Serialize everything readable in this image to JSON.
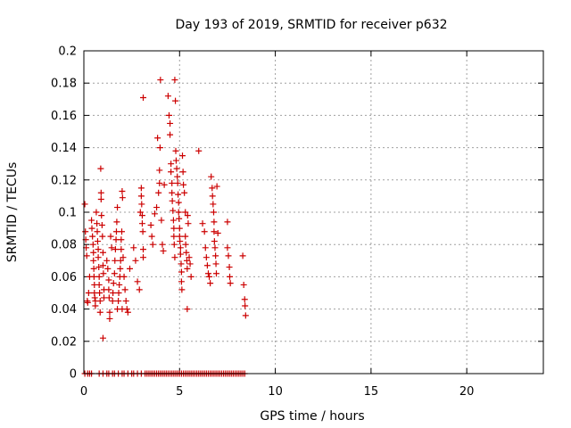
{
  "chart_data": {
    "type": "scatter",
    "title": "Day 193 of 2019, SRMTID for receiver p632",
    "xlabel": "GPS time / hours",
    "ylabel": "SRMTID / TECUs",
    "xlim": [
      0,
      24
    ],
    "ylim": [
      0,
      0.2
    ],
    "x_ticks": [
      0,
      5,
      10,
      15,
      20
    ],
    "x_tick_labels": [
      "0",
      "5",
      "10",
      "15",
      "20"
    ],
    "y_ticks": [
      0,
      0.02,
      0.04,
      0.06,
      0.08,
      0.1,
      0.12,
      0.14,
      0.16,
      0.18,
      0.2
    ],
    "y_tick_labels": [
      "0",
      "0.02",
      "0.04",
      "0.06",
      "0.08",
      "0.1",
      "0.12",
      "0.14",
      "0.16",
      "0.18",
      "0.2"
    ],
    "grid": true,
    "marker": "+",
    "series": [
      {
        "name": "SRMTID",
        "color": "#cc0000",
        "points": [
          [
            0.05,
            0.105
          ],
          [
            0.08,
            0.088
          ],
          [
            0.1,
            0.083
          ],
          [
            0.12,
            0.078
          ],
          [
            0.15,
            0.073
          ],
          [
            0.18,
            0.045
          ],
          [
            0.2,
            0.044
          ],
          [
            0.25,
            0.05
          ],
          [
            0.3,
            0.06
          ],
          [
            0.4,
            0.095
          ],
          [
            0.42,
            0.09
          ],
          [
            0.45,
            0.085
          ],
          [
            0.48,
            0.08
          ],
          [
            0.5,
            0.075
          ],
          [
            0.5,
            0.07
          ],
          [
            0.52,
            0.065
          ],
          [
            0.53,
            0.06
          ],
          [
            0.55,
            0.055
          ],
          [
            0.55,
            0.05
          ],
          [
            0.57,
            0.047
          ],
          [
            0.6,
            0.045
          ],
          [
            0.6,
            0.042
          ],
          [
            0.65,
            0.1
          ],
          [
            0.68,
            0.093
          ],
          [
            0.7,
            0.088
          ],
          [
            0.72,
            0.082
          ],
          [
            0.75,
            0.077
          ],
          [
            0.75,
            0.072
          ],
          [
            0.78,
            0.066
          ],
          [
            0.8,
            0.06
          ],
          [
            0.8,
            0.055
          ],
          [
            0.82,
            0.05
          ],
          [
            0.85,
            0.045
          ],
          [
            0.85,
            0.038
          ],
          [
            0.88,
            0.127
          ],
          [
            0.9,
            0.112
          ],
          [
            0.9,
            0.108
          ],
          [
            0.92,
            0.098
          ],
          [
            0.95,
            0.092
          ],
          [
            0.97,
            0.085
          ],
          [
            1.0,
            0.075
          ],
          [
            1.0,
            0.067
          ],
          [
            1.02,
            0.062
          ],
          [
            1.05,
            0.052
          ],
          [
            1.05,
            0.047
          ],
          [
            1.0,
            0.022
          ],
          [
            1.2,
            0.07
          ],
          [
            1.25,
            0.065
          ],
          [
            1.3,
            0.058
          ],
          [
            1.3,
            0.052
          ],
          [
            1.32,
            0.047
          ],
          [
            1.35,
            0.038
          ],
          [
            1.35,
            0.034
          ],
          [
            1.4,
            0.085
          ],
          [
            1.45,
            0.078
          ],
          [
            1.5,
            0.045
          ],
          [
            1.52,
            0.05
          ],
          [
            1.55,
            0.056
          ],
          [
            1.6,
            0.062
          ],
          [
            1.62,
            0.07
          ],
          [
            1.65,
            0.077
          ],
          [
            1.68,
            0.083
          ],
          [
            1.7,
            0.088
          ],
          [
            1.72,
            0.094
          ],
          [
            1.75,
            0.103
          ],
          [
            1.75,
            0.04
          ],
          [
            1.8,
            0.045
          ],
          [
            1.82,
            0.05
          ],
          [
            1.85,
            0.055
          ],
          [
            1.88,
            0.06
          ],
          [
            1.9,
            0.065
          ],
          [
            1.92,
            0.07
          ],
          [
            1.95,
            0.077
          ],
          [
            1.95,
            0.083
          ],
          [
            1.98,
            0.088
          ],
          [
            2.0,
            0.04
          ],
          [
            2.0,
            0.113
          ],
          [
            2.02,
            0.109
          ],
          [
            2.05,
            0.072
          ],
          [
            2.1,
            0.06
          ],
          [
            2.15,
            0.052
          ],
          [
            2.2,
            0.045
          ],
          [
            2.25,
            0.04
          ],
          [
            2.3,
            0.038
          ],
          [
            2.4,
            0.065
          ],
          [
            2.6,
            0.078
          ],
          [
            2.7,
            0.07
          ],
          [
            2.8,
            0.057
          ],
          [
            2.9,
            0.052
          ],
          [
            2.95,
            0.1
          ],
          [
            3.0,
            0.115
          ],
          [
            3.0,
            0.11
          ],
          [
            3.02,
            0.105
          ],
          [
            3.05,
            0.098
          ],
          [
            3.05,
            0.093
          ],
          [
            3.08,
            0.088
          ],
          [
            3.1,
            0.077
          ],
          [
            3.1,
            0.072
          ],
          [
            3.1,
            0.171
          ],
          [
            3.5,
            0.092
          ],
          [
            3.55,
            0.085
          ],
          [
            3.6,
            0.08
          ],
          [
            3.7,
            0.099
          ],
          [
            3.8,
            0.103
          ],
          [
            3.9,
            0.112
          ],
          [
            3.95,
            0.118
          ],
          [
            3.95,
            0.126
          ],
          [
            3.98,
            0.14
          ],
          [
            3.85,
            0.146
          ],
          [
            4.0,
            0.182
          ],
          [
            4.05,
            0.095
          ],
          [
            4.1,
            0.08
          ],
          [
            4.15,
            0.076
          ],
          [
            4.2,
            0.117
          ],
          [
            4.4,
            0.172
          ],
          [
            4.45,
            0.16
          ],
          [
            4.5,
            0.155
          ],
          [
            4.5,
            0.148
          ],
          [
            4.55,
            0.13
          ],
          [
            4.55,
            0.125
          ],
          [
            4.6,
            0.118
          ],
          [
            4.6,
            0.112
          ],
          [
            4.62,
            0.107
          ],
          [
            4.65,
            0.101
          ],
          [
            4.68,
            0.095
          ],
          [
            4.7,
            0.09
          ],
          [
            4.7,
            0.085
          ],
          [
            4.72,
            0.08
          ],
          [
            4.75,
            0.072
          ],
          [
            4.75,
            0.182
          ],
          [
            4.78,
            0.169
          ],
          [
            4.8,
            0.138
          ],
          [
            4.82,
            0.132
          ],
          [
            4.85,
            0.127
          ],
          [
            4.88,
            0.122
          ],
          [
            4.9,
            0.118
          ],
          [
            4.92,
            0.111
          ],
          [
            4.95,
            0.106
          ],
          [
            4.95,
            0.1
          ],
          [
            4.97,
            0.096
          ],
          [
            5.0,
            0.09
          ],
          [
            5.0,
            0.085
          ],
          [
            5.02,
            0.082
          ],
          [
            5.05,
            0.078
          ],
          [
            5.05,
            0.074
          ],
          [
            5.08,
            0.068
          ],
          [
            5.1,
            0.063
          ],
          [
            5.1,
            0.057
          ],
          [
            5.12,
            0.052
          ],
          [
            5.15,
            0.135
          ],
          [
            5.18,
            0.125
          ],
          [
            5.2,
            0.117
          ],
          [
            5.25,
            0.112
          ],
          [
            5.3,
            0.1
          ],
          [
            5.3,
            0.085
          ],
          [
            5.32,
            0.08
          ],
          [
            5.35,
            0.075
          ],
          [
            5.38,
            0.07
          ],
          [
            5.4,
            0.065
          ],
          [
            5.4,
            0.04
          ],
          [
            5.42,
            0.098
          ],
          [
            5.45,
            0.093
          ],
          [
            5.5,
            0.072
          ],
          [
            5.55,
            0.068
          ],
          [
            5.6,
            0.06
          ],
          [
            6.0,
            0.138
          ],
          [
            6.2,
            0.093
          ],
          [
            6.3,
            0.088
          ],
          [
            6.35,
            0.078
          ],
          [
            6.4,
            0.072
          ],
          [
            6.45,
            0.067
          ],
          [
            6.5,
            0.062
          ],
          [
            6.55,
            0.06
          ],
          [
            6.6,
            0.056
          ],
          [
            6.65,
            0.122
          ],
          [
            6.7,
            0.115
          ],
          [
            6.72,
            0.11
          ],
          [
            6.75,
            0.105
          ],
          [
            6.78,
            0.1
          ],
          [
            6.8,
            0.094
          ],
          [
            6.8,
            0.088
          ],
          [
            6.82,
            0.082
          ],
          [
            6.85,
            0.078
          ],
          [
            6.88,
            0.073
          ],
          [
            6.9,
            0.068
          ],
          [
            6.92,
            0.062
          ],
          [
            6.95,
            0.116
          ],
          [
            7.0,
            0.087
          ],
          [
            7.5,
            0.094
          ],
          [
            7.5,
            0.078
          ],
          [
            7.55,
            0.073
          ],
          [
            7.6,
            0.066
          ],
          [
            7.62,
            0.06
          ],
          [
            7.65,
            0.056
          ],
          [
            8.3,
            0.073
          ],
          [
            8.35,
            0.055
          ],
          [
            8.4,
            0.046
          ],
          [
            8.42,
            0.042
          ],
          [
            8.45,
            0.036
          ],
          [
            0.05,
            0
          ],
          [
            0.2,
            0
          ],
          [
            0.3,
            0
          ],
          [
            0.4,
            0
          ],
          [
            0.8,
            0
          ],
          [
            1.0,
            0
          ],
          [
            1.2,
            0
          ],
          [
            1.3,
            0
          ],
          [
            1.5,
            0
          ],
          [
            1.6,
            0
          ],
          [
            1.8,
            0
          ],
          [
            2.0,
            0
          ],
          [
            2.1,
            0
          ],
          [
            2.3,
            0
          ],
          [
            2.5,
            0
          ],
          [
            2.6,
            0
          ],
          [
            2.8,
            0
          ],
          [
            3.0,
            0
          ],
          [
            3.2,
            0
          ],
          [
            3.3,
            0
          ],
          [
            3.4,
            0
          ],
          [
            3.5,
            0
          ],
          [
            3.6,
            0
          ],
          [
            3.7,
            0
          ],
          [
            3.8,
            0
          ],
          [
            3.9,
            0
          ],
          [
            4.0,
            0
          ],
          [
            4.1,
            0
          ],
          [
            4.2,
            0
          ],
          [
            4.3,
            0
          ],
          [
            4.4,
            0
          ],
          [
            4.5,
            0
          ],
          [
            4.6,
            0
          ],
          [
            4.7,
            0
          ],
          [
            4.8,
            0
          ],
          [
            4.9,
            0
          ],
          [
            5.0,
            0
          ],
          [
            5.1,
            0
          ],
          [
            5.2,
            0
          ],
          [
            5.3,
            0
          ],
          [
            5.4,
            0
          ],
          [
            5.5,
            0
          ],
          [
            5.6,
            0
          ],
          [
            5.7,
            0
          ],
          [
            5.8,
            0
          ],
          [
            5.9,
            0
          ],
          [
            6.0,
            0
          ],
          [
            6.1,
            0
          ],
          [
            6.2,
            0
          ],
          [
            6.3,
            0
          ],
          [
            6.4,
            0
          ],
          [
            6.5,
            0
          ],
          [
            6.6,
            0
          ],
          [
            6.7,
            0
          ],
          [
            6.8,
            0
          ],
          [
            6.9,
            0
          ],
          [
            7.0,
            0
          ],
          [
            7.1,
            0
          ],
          [
            7.2,
            0
          ],
          [
            7.3,
            0
          ],
          [
            7.4,
            0
          ],
          [
            7.5,
            0
          ],
          [
            7.6,
            0
          ],
          [
            7.7,
            0
          ],
          [
            7.8,
            0
          ],
          [
            7.9,
            0
          ],
          [
            8.0,
            0
          ],
          [
            8.1,
            0
          ],
          [
            8.2,
            0
          ],
          [
            8.3,
            0
          ],
          [
            8.4,
            0
          ]
        ]
      }
    ]
  }
}
